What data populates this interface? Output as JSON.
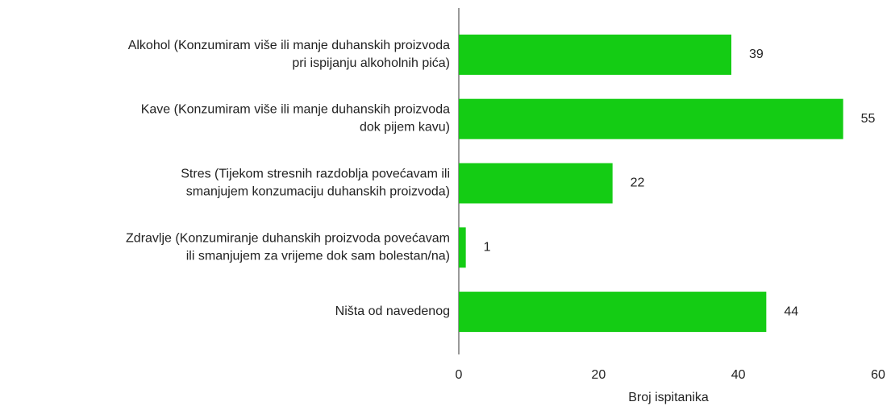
{
  "chart_data": {
    "type": "hbar",
    "categories": [
      "Alkohol (Konzumiram više ili manje duhanskih proizvoda\npri ispijanju alkoholnih pića)",
      "Kave (Konzumiram više ili manje duhanskih proizvoda\ndok pijem kavu)",
      "Stres (Tijekom stresnih razdoblja povećavam ili\nsmanjujem konzumaciju duhanskih proizvoda)",
      "Zdravlje (Konzumiranje duhanskih proizvoda povećavam\nili smanjujem za vrijeme dok sam bolestan/na)",
      "Ništa od navedenog"
    ],
    "values": [
      39,
      55,
      22,
      1,
      44
    ],
    "color": "#14cc14",
    "xlabel": "Broj ispitanika",
    "xlim": [
      0,
      60
    ],
    "xticks": [
      0,
      20,
      40,
      60
    ],
    "grid": false
  }
}
